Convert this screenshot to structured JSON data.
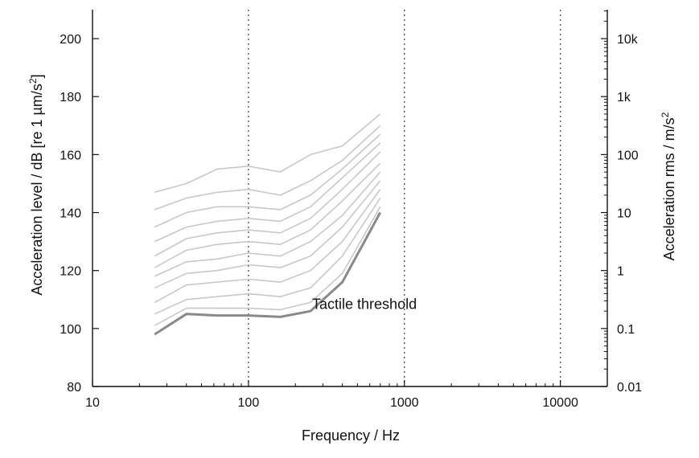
{
  "chart_data": {
    "type": "line",
    "title": "",
    "xlabel": "Frequency / Hz",
    "ylabel_left": "Acceleration level / dB [re 1 µm/s",
    "ylabel_left_sup": "2",
    "ylabel_left_end": "]",
    "ylabel_right": "Acceleration rms / m/s",
    "ylabel_right_sup": "2",
    "x_scale": "log",
    "xlim": [
      10,
      20000
    ],
    "ylim": [
      80,
      210
    ],
    "x_ticks": [
      10,
      100,
      1000,
      10000
    ],
    "x_tick_labels": [
      "10",
      "100",
      "1000",
      "10000"
    ],
    "y_ticks": [
      80,
      100,
      120,
      140,
      160,
      180,
      200
    ],
    "y_tick_labels": [
      "80",
      "100",
      "120",
      "140",
      "160",
      "180",
      "200"
    ],
    "right_ticks_db": [
      80,
      100,
      120,
      140,
      160,
      180,
      200
    ],
    "right_tick_labels": [
      "0.01",
      "0.1",
      "1",
      "10",
      "100",
      "1k",
      "10k"
    ],
    "vertical_gridlines_at": [
      100,
      1000,
      10000
    ],
    "grid": "dotted vertical",
    "legend": "none",
    "x": [
      25,
      40,
      63,
      100,
      160,
      250,
      400,
      700
    ],
    "series": [
      {
        "values": [
          98,
          105,
          104.5,
          104.5,
          104,
          106,
          116,
          140
        ],
        "threshold": true
      },
      {
        "values": [
          101,
          107,
          107,
          107,
          106.5,
          109,
          119,
          142
        ]
      },
      {
        "values": [
          105,
          110,
          111,
          112,
          111,
          114,
          125,
          145
        ]
      },
      {
        "values": [
          109,
          115,
          116,
          117,
          116,
          120,
          130,
          148
        ]
      },
      {
        "values": [
          114,
          119,
          120,
          122,
          121,
          125,
          135,
          151
        ]
      },
      {
        "values": [
          118,
          123,
          124,
          126,
          125,
          130,
          139,
          154
        ]
      },
      {
        "values": [
          121,
          127,
          129,
          130,
          129,
          134,
          144,
          157
        ]
      },
      {
        "values": [
          125,
          131,
          133,
          134,
          133,
          138,
          148,
          161
        ]
      },
      {
        "values": [
          130,
          135,
          137,
          138,
          137,
          142,
          152,
          164
        ]
      },
      {
        "values": [
          135,
          140,
          142,
          142,
          141,
          146,
          155,
          167
        ]
      },
      {
        "values": [
          141,
          145,
          147,
          148,
          146,
          151,
          158,
          170
        ]
      },
      {
        "values": [
          147,
          150,
          155,
          156,
          154,
          160,
          163,
          174
        ]
      }
    ],
    "series_color": "#c8c8c8",
    "threshold_color": "#8a8a8a",
    "annotation": {
      "text": "Tactile threshold",
      "x": 250,
      "y": 104.5
    }
  }
}
